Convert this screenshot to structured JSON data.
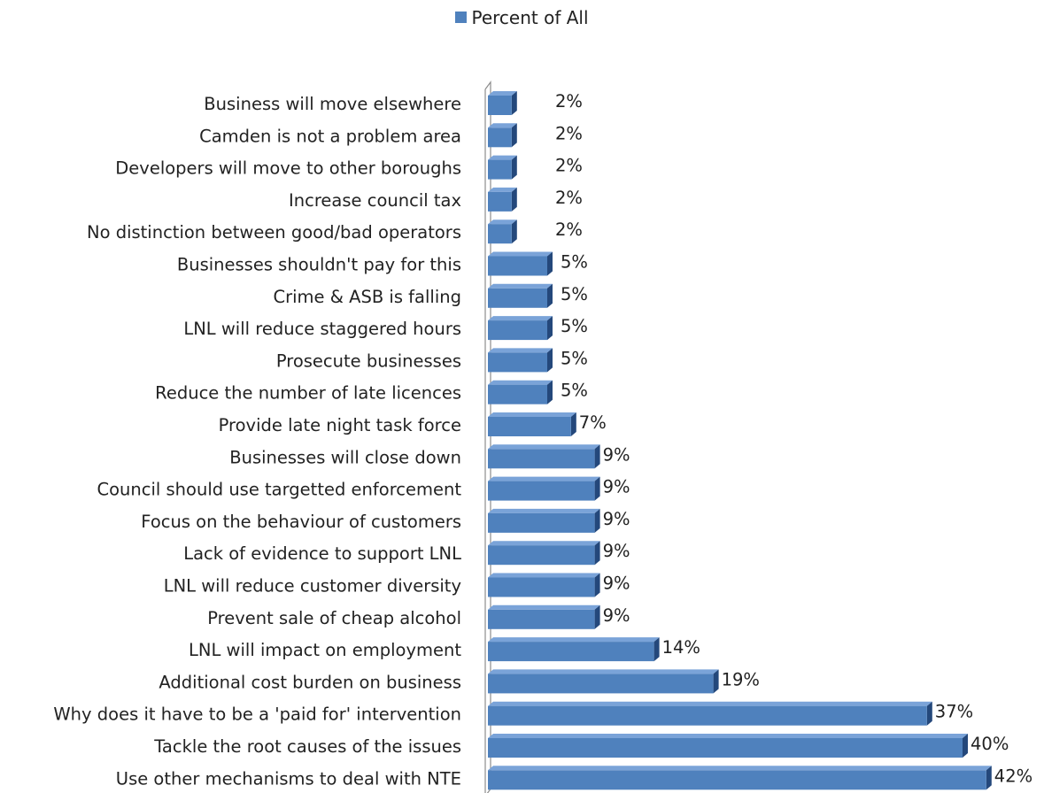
{
  "legend": {
    "label": "Percent of All"
  },
  "colors": {
    "bar_front": "#4f81bd",
    "bar_top": "#7aa3d8",
    "bar_side": "#24487b",
    "axis": "#8c8c8c"
  },
  "chart_data": {
    "type": "bar",
    "orientation": "horizontal",
    "style": "3d",
    "legend_placement": "top",
    "grid": false,
    "series": [
      {
        "name": "Percent of All",
        "values": [
          2,
          2,
          2,
          2,
          2,
          5,
          5,
          5,
          5,
          5,
          7,
          9,
          9,
          9,
          9,
          9,
          9,
          14,
          19,
          37,
          40,
          42
        ]
      }
    ],
    "categories": [
      "Business will move elsewhere",
      "Camden is not a problem area",
      "Developers will move to other boroughs",
      "Increase council tax",
      "No distinction between good/bad operators",
      "Businesses shouldn't pay for this",
      "Crime & ASB is falling",
      "LNL will reduce staggered hours",
      "Prosecute businesses",
      "Reduce the number of late licences",
      "Provide late night task force",
      "Businesses will close down",
      "Council should use targetted enforcement",
      "Focus on the behaviour of customers",
      "Lack of evidence to support LNL",
      "LNL will reduce customer diversity",
      "Prevent sale of cheap alcohol",
      "LNL will impact on employment",
      "Additional cost burden on business",
      "Why does it have to be a 'paid for' intervention",
      "Tackle the root causes of the issues",
      "Use other mechanisms to deal with NTE"
    ],
    "data_labels": [
      "2%",
      "2%",
      "2%",
      "2%",
      "2%",
      "5%",
      "5%",
      "5%",
      "5%",
      "5%",
      "7%",
      "9%",
      "9%",
      "9%",
      "9%",
      "9%",
      "9%",
      "14%",
      "19%",
      "37%",
      "40%",
      "42%"
    ],
    "xlim": [
      0,
      42
    ]
  }
}
